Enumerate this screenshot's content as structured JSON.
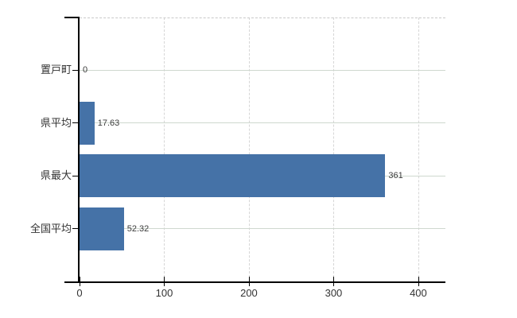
{
  "chart_data": {
    "type": "bar",
    "orientation": "horizontal",
    "title": "",
    "xlabel": "",
    "ylabel": "",
    "categories": [
      "置戸町",
      "県平均",
      "県最大",
      "全国平均"
    ],
    "values": [
      0,
      17.63,
      361,
      52.32
    ],
    "value_labels": [
      "0",
      "17.63",
      "361",
      "52.32"
    ],
    "x_ticks": [
      0,
      100,
      200,
      300,
      400
    ],
    "x_tick_labels": [
      "0",
      "100",
      "200",
      "300",
      "400"
    ],
    "xlim": [
      0,
      432
    ],
    "grid": true,
    "legend_position": "none",
    "bar_color": "#4572a7",
    "axis_color": "#000000",
    "h_gridline_color": "#cfd8cf",
    "v_gridline_color": "#d6d6d6",
    "top_border_color": "#c9c9c9",
    "category_label_color": "#333333",
    "tick_label_color": "#333333",
    "value_label_color": "#3c3c3c",
    "background_color": "#ffffff"
  }
}
